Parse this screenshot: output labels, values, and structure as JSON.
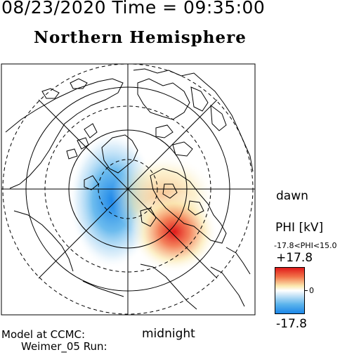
{
  "header": {
    "datetime": "08/23/2020 Time = 09:35:00",
    "title": "Northern Hemisphere"
  },
  "map": {
    "labels": {
      "dawn": "dawn",
      "midnight": "midnight"
    },
    "potential_pattern": {
      "negative_cell": "dusk side, centered pre-midnight near 80° latitude",
      "positive_cell": "dawn side, centered post-midnight near 70° latitude"
    },
    "latitude_rings_deg": [
      80,
      70,
      60,
      50
    ],
    "colors": {
      "positive": "#e01a1a",
      "negative": "#1c86e8",
      "zero": "#ffffff"
    }
  },
  "model_info": {
    "line1": "Model at CCMC:",
    "line2": "Weimer_05 Run:"
  },
  "colorbar": {
    "title": "PHI [kV]",
    "range_label": "-17.8<PHI<15.0",
    "max_label": "+17.8",
    "zero_label": "0",
    "min_label": "-17.8",
    "max_value": 17.8,
    "min_value": -17.8
  }
}
